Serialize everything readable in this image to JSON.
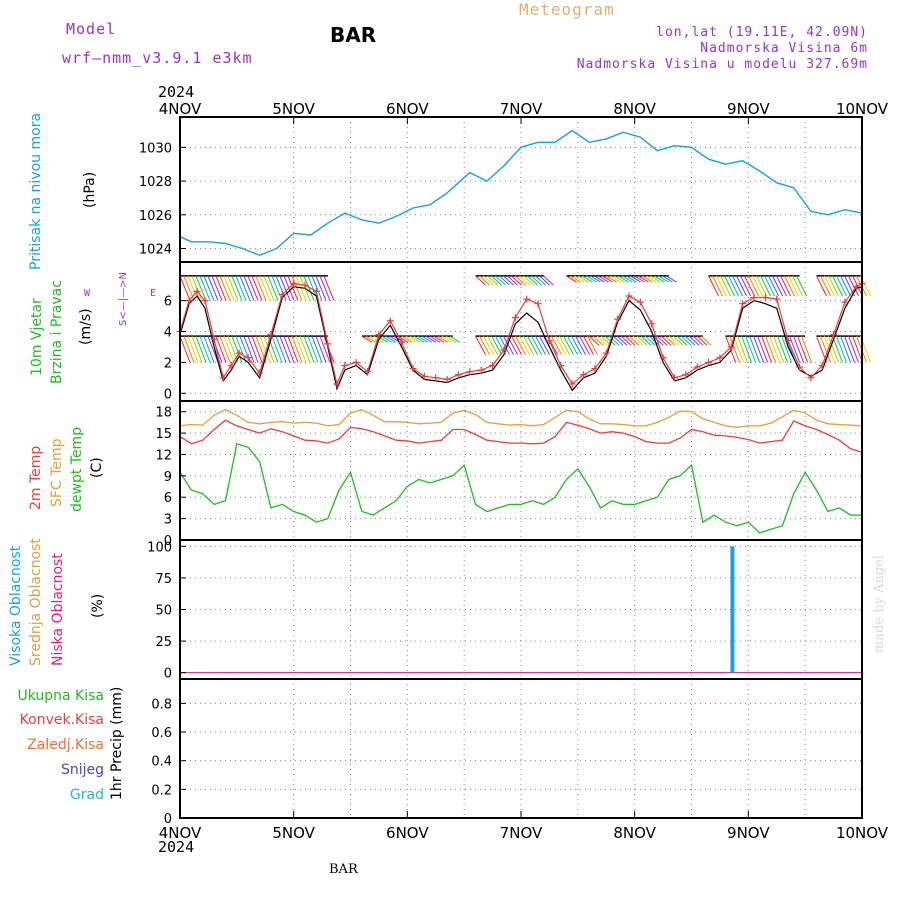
{
  "header": {
    "model_label": "Model",
    "model_name": "wrf–nmm_v3.9.1  e3km",
    "station": "BAR",
    "meteogram": "Meteogram",
    "lonlat": "lon,lat (19.11E, 42.09N)",
    "elevation": "Nadmorska Visina 6m",
    "model_elevation": "Nadmorska Visina u modelu 327.69m",
    "year": "2024"
  },
  "footer": {
    "station": "BAR",
    "year": "2024",
    "credit": "made by Angel"
  },
  "x_axis": {
    "ticks": [
      "4NOV",
      "5NOV",
      "6NOV",
      "7NOV",
      "8NOV",
      "9NOV",
      "10NOV"
    ]
  },
  "colors": {
    "pressure": "#1aa0e0",
    "wind_speed": "#000000",
    "wind_gust": "#e8403a",
    "temp2m": "#e8403a",
    "sfc_temp": "#e0a040",
    "dewpt": "#22bb22",
    "high_cloud": "#1aa0e0",
    "mid_cloud": "#e0a040",
    "low_cloud": "#e0207a",
    "purple": "#9933cc"
  },
  "panels": {
    "pressure": {
      "label1": "Pritisak na nivou mora",
      "unit": "(hPa)",
      "ticks": [
        "1024",
        "1026",
        "1028",
        "1030"
      ]
    },
    "wind": {
      "label1": "10m Vjetar",
      "label2": "Brzina i Pravac",
      "unit": "(m/s)",
      "ticks": [
        "0",
        "2",
        "4",
        "6"
      ],
      "compass_ns": "S<—|—>N",
      "compass_w": "W",
      "compass_e": "E"
    },
    "temp": {
      "label1": "2m Temp",
      "label2": "SFC Temp",
      "label3": "dewpt Temp",
      "unit": "(C)",
      "ticks": [
        "0",
        "3",
        "6",
        "9",
        "12",
        "15",
        "18"
      ]
    },
    "cloud": {
      "label1": "Visoka Oblacnost",
      "label2": "Srednja Oblacnost",
      "label3": "Niska Oblacnost",
      "unit": "(%)",
      "ticks": [
        "0",
        "25",
        "50",
        "75",
        "100"
      ]
    },
    "precip": {
      "label1": "Ukupna Kisa",
      "label2": "Konvek.Kisa",
      "label3": "Zaledj.Kisa",
      "label4": "Snijeg",
      "label5": "Grad",
      "unit": "1hr Precip (mm)",
      "ticks": [
        "0",
        "0.2",
        "0.4",
        "0.6",
        "0.8"
      ]
    }
  },
  "chart_data": [
    {
      "type": "line",
      "ylabel": "(hPa)",
      "ylim": [
        1023.2,
        1031.8
      ],
      "x": [
        0,
        0.1,
        0.25,
        0.4,
        0.55,
        0.7,
        0.85,
        1.0,
        1.15,
        1.3,
        1.45,
        1.6,
        1.75,
        1.9,
        2.05,
        2.2,
        2.35,
        2.55,
        2.7,
        2.85,
        3.0,
        3.15,
        3.3,
        3.45,
        3.6,
        3.75,
        3.9,
        4.05,
        4.2,
        4.35,
        4.5,
        4.65,
        4.8,
        4.95,
        5.1,
        5.25,
        5.4,
        5.55,
        5.7,
        5.85,
        6.0
      ],
      "series": [
        {
          "values": [
            1024.7,
            1024.4,
            1024.4,
            1024.3,
            1024.0,
            1023.6,
            1024.0,
            1024.9,
            1024.8,
            1025.5,
            1026.1,
            1025.7,
            1025.5,
            1025.9,
            1026.4,
            1026.6,
            1027.3,
            1028.5,
            1028.0,
            1028.9,
            1030.0,
            1030.3,
            1030.3,
            1031.0,
            1030.3,
            1030.5,
            1030.9,
            1030.6,
            1029.8,
            1030.1,
            1030.0,
            1029.3,
            1029.0,
            1029.2,
            1028.6,
            1027.9,
            1027.6,
            1026.2,
            1026.0,
            1026.3,
            1026.1
          ]
        }
      ]
    },
    {
      "type": "line",
      "ylabel": "(m/s)",
      "ylim": [
        -0.5,
        8.5
      ],
      "x": [
        0,
        0.08,
        0.15,
        0.22,
        0.3,
        0.38,
        0.45,
        0.52,
        0.6,
        0.7,
        0.8,
        0.9,
        1.0,
        1.1,
        1.2,
        1.3,
        1.38,
        1.45,
        1.55,
        1.65,
        1.75,
        1.85,
        1.95,
        2.05,
        2.15,
        2.25,
        2.35,
        2.45,
        2.55,
        2.65,
        2.75,
        2.85,
        2.95,
        3.05,
        3.15,
        3.25,
        3.35,
        3.45,
        3.55,
        3.65,
        3.75,
        3.85,
        3.95,
        4.05,
        4.15,
        4.25,
        4.35,
        4.45,
        4.55,
        4.65,
        4.75,
        4.85,
        4.95,
        5.05,
        5.15,
        5.25,
        5.35,
        5.45,
        5.55,
        5.65,
        5.75,
        5.85,
        5.95,
        6.0
      ],
      "series": [
        {
          "name": "speed",
          "values": [
            3.8,
            5.8,
            6.3,
            5.5,
            3.0,
            0.8,
            1.5,
            2.4,
            2.0,
            1.0,
            3.5,
            6.2,
            6.9,
            6.8,
            6.3,
            3.0,
            0.3,
            1.5,
            1.8,
            1.2,
            3.5,
            4.4,
            3.0,
            1.5,
            0.9,
            0.8,
            0.7,
            1.0,
            1.2,
            1.3,
            1.5,
            2.5,
            4.5,
            5.2,
            4.6,
            3.0,
            1.5,
            0.2,
            1.0,
            1.3,
            2.4,
            4.6,
            6.0,
            5.4,
            4.0,
            2.0,
            0.8,
            1.0,
            1.5,
            1.8,
            2.0,
            2.8,
            5.5,
            6.0,
            5.8,
            5.5,
            3.0,
            1.5,
            1.1,
            1.5,
            3.5,
            5.5,
            6.8,
            6.9
          ]
        },
        {
          "name": "gust",
          "values": [
            4.0,
            6.0,
            6.6,
            6.0,
            3.5,
            1.0,
            1.8,
            2.6,
            2.3,
            1.3,
            3.8,
            6.4,
            7.1,
            7.0,
            6.6,
            3.2,
            0.6,
            1.8,
            2.0,
            1.4,
            3.8,
            4.7,
            3.3,
            1.6,
            1.1,
            1.0,
            0.9,
            1.2,
            1.4,
            1.5,
            1.8,
            2.8,
            4.9,
            6.1,
            5.8,
            3.4,
            1.8,
            0.6,
            1.2,
            1.6,
            2.6,
            4.8,
            6.3,
            5.9,
            4.5,
            2.3,
            1.0,
            1.2,
            1.7,
            2.0,
            2.3,
            3.0,
            5.8,
            6.2,
            6.2,
            6.1,
            3.4,
            1.7,
            1.0,
            1.8,
            3.8,
            5.9,
            6.9,
            7.1
          ]
        }
      ]
    },
    {
      "type": "line",
      "ylabel": "(C)",
      "ylim": [
        0,
        19.5
      ],
      "x": [
        0,
        0.1,
        0.2,
        0.3,
        0.4,
        0.5,
        0.6,
        0.7,
        0.8,
        0.9,
        1.0,
        1.1,
        1.2,
        1.3,
        1.4,
        1.5,
        1.6,
        1.7,
        1.8,
        1.9,
        2.0,
        2.1,
        2.2,
        2.3,
        2.4,
        2.5,
        2.6,
        2.7,
        2.8,
        2.9,
        3.0,
        3.1,
        3.2,
        3.3,
        3.4,
        3.5,
        3.6,
        3.7,
        3.8,
        3.9,
        4.0,
        4.1,
        4.2,
        4.3,
        4.4,
        4.5,
        4.6,
        4.7,
        4.8,
        4.9,
        5.0,
        5.1,
        5.2,
        5.3,
        5.4,
        5.5,
        5.6,
        5.7,
        5.8,
        5.9,
        6.0
      ],
      "series": [
        {
          "name": "2m",
          "values": [
            14.5,
            13.5,
            14.0,
            15.5,
            16.8,
            16.0,
            15.5,
            15.0,
            15.6,
            15.2,
            14.6,
            14.0,
            13.9,
            13.6,
            14.2,
            15.8,
            15.6,
            15.2,
            14.6,
            14.0,
            13.9,
            13.6,
            13.8,
            14.0,
            15.5,
            15.5,
            14.8,
            14.0,
            13.8,
            13.6,
            13.6,
            13.5,
            13.6,
            14.5,
            16.5,
            16.1,
            15.6,
            15.0,
            15.2,
            15.0,
            14.5,
            13.8,
            13.6,
            13.6,
            14.3,
            15.5,
            15.2,
            14.7,
            14.6,
            14.4,
            14.1,
            13.6,
            13.8,
            14.0,
            16.7,
            16.0,
            15.5,
            14.8,
            14.0,
            12.8,
            12.3
          ]
        },
        {
          "name": "sfc",
          "values": [
            16.0,
            16.2,
            16.1,
            17.5,
            18.3,
            17.5,
            16.5,
            16.3,
            16.5,
            16.6,
            16.4,
            16.5,
            16.4,
            16.0,
            16.2,
            17.8,
            18.3,
            17.5,
            16.6,
            16.6,
            16.5,
            16.3,
            16.4,
            16.5,
            17.8,
            18.2,
            17.6,
            16.5,
            16.3,
            16.1,
            16.2,
            16.0,
            16.2,
            17.2,
            18.2,
            18.0,
            17.0,
            16.3,
            16.3,
            16.2,
            16.0,
            16.0,
            16.5,
            17.2,
            18.1,
            18.0,
            17.0,
            16.5,
            16.0,
            15.8,
            16.0,
            16.0,
            16.4,
            17.3,
            18.2,
            17.8,
            16.8,
            16.3,
            16.2,
            16.1,
            16.0
          ]
        },
        {
          "name": "dewpt",
          "values": [
            9.5,
            7.0,
            6.5,
            5.0,
            5.5,
            13.5,
            13.0,
            11.0,
            4.5,
            5.0,
            4.0,
            3.5,
            2.5,
            3.0,
            7.0,
            9.5,
            4.0,
            3.5,
            4.5,
            5.5,
            7.5,
            8.5,
            8.0,
            8.5,
            9.0,
            10.5,
            5.0,
            4.0,
            4.5,
            5.0,
            5.0,
            5.5,
            5.0,
            6.0,
            8.5,
            10.0,
            7.5,
            4.5,
            5.5,
            5.0,
            5.0,
            5.5,
            6.0,
            8.5,
            9.0,
            10.5,
            2.5,
            3.5,
            2.5,
            2.0,
            2.5,
            1.0,
            1.5,
            2.0,
            6.5,
            9.5,
            7.0,
            4.0,
            4.5,
            3.5,
            3.5
          ]
        }
      ]
    },
    {
      "type": "bar",
      "ylabel": "(%)",
      "ylim": [
        -5,
        105
      ],
      "series": [
        {
          "name": "Visoka Oblacnost",
          "x": [
            4.86
          ],
          "values": [
            100
          ]
        }
      ]
    },
    {
      "type": "bar",
      "ylabel": "1hr Precip (mm)",
      "ylim": [
        0,
        0.97
      ],
      "series": []
    }
  ]
}
